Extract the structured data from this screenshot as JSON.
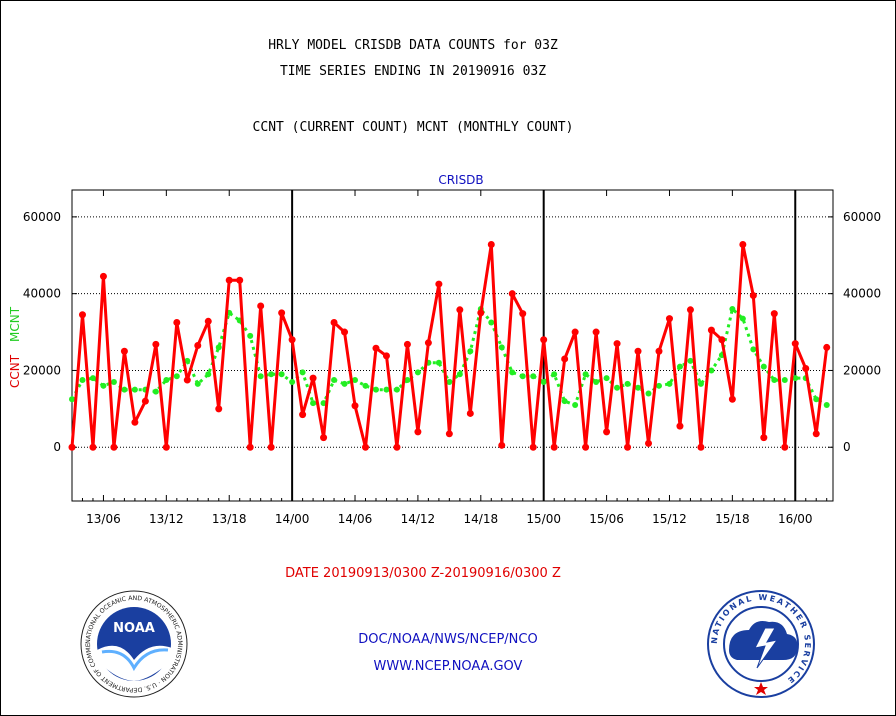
{
  "titles": {
    "line1": "HRLY MODEL CRISDB DATA COUNTS for 03Z",
    "line2": "TIME SERIES ENDING IN 20190916 03Z",
    "line3": "CCNT (CURRENT COUNT) MCNT (MONTHLY COUNT)",
    "panel_label": "CRISDB"
  },
  "footer": {
    "date_range": "DATE 20190913/0300 Z-20190916/0300 Z",
    "org": "DOC/NOAA/NWS/NCEP/NCO",
    "url": "WWW.NCEP.NOAA.GOV"
  },
  "logos": {
    "left_text": "NOAA",
    "left_ring_text": "NATIONAL OCEANIC AND ATMOSPHERIC ADMINISTRATION · U.S. DEPARTMENT OF COMMERCE",
    "right_ring_text": "NATIONAL WEATHER SERVICE"
  },
  "colors": {
    "ccnt": "#ff0000",
    "mcnt": "#22ee22",
    "axis": "#000000"
  },
  "chart_data": {
    "type": "line",
    "ylabel_ccnt": "CCNT",
    "ylabel_mcnt": "MCNT",
    "ylim": [
      -14000,
      67000
    ],
    "yticks": [
      0,
      20000,
      40000,
      60000
    ],
    "ytick_labels": [
      "0",
      "20000",
      "40000",
      "60000"
    ],
    "xlim": [
      0,
      72.6
    ],
    "xticks": [
      3,
      9,
      15,
      21,
      27,
      33,
      39,
      45,
      51,
      57,
      63,
      69
    ],
    "xtick_labels": [
      "13/06",
      "13/12",
      "13/18",
      "14/00",
      "14/06",
      "14/12",
      "14/18",
      "15/00",
      "15/06",
      "15/12",
      "15/18",
      "16/00"
    ],
    "day_boundaries": [
      21,
      45,
      69
    ],
    "grid": "horizontal dotted at labeled y ticks",
    "series": [
      {
        "name": "CCNT",
        "color": "#ff0000",
        "values": [
          0,
          34500,
          0,
          44500,
          0,
          25000,
          6500,
          12000,
          26800,
          0,
          32500,
          17500,
          26500,
          32800,
          10000,
          43500,
          43500,
          0,
          36800,
          0,
          35000,
          28000,
          8500,
          18000,
          2500,
          32500,
          30000,
          10800,
          0,
          25800,
          23800,
          0,
          26800,
          4000,
          27200,
          42500,
          3500,
          35800,
          8800,
          35000,
          52800,
          500,
          40000,
          34800,
          0,
          28000,
          0,
          23000,
          30000,
          0,
          30000,
          4000,
          27000,
          0,
          25000,
          1000,
          25000,
          33500,
          5500,
          35800,
          0,
          30500,
          28000,
          12500,
          52800,
          39500,
          2500,
          34800,
          0,
          27000,
          20500,
          3500,
          26000
        ]
      },
      {
        "name": "MCNT",
        "color": "#22ee22",
        "values": [
          12500,
          17500,
          18000,
          16000,
          17000,
          15000,
          15000,
          15000,
          14500,
          17500,
          18500,
          22500,
          16500,
          19000,
          26000,
          35000,
          33000,
          29000,
          18500,
          19000,
          19000,
          17000,
          19500,
          11500,
          11500,
          17500,
          16500,
          17500,
          16000,
          15000,
          15000,
          15000,
          17500,
          19500,
          22000,
          22000,
          17000,
          19000,
          25000,
          36000,
          32500,
          26000,
          19500,
          18500,
          18500,
          17000,
          19000,
          12000,
          11000,
          19000,
          17000,
          18000,
          15500,
          16500,
          15500,
          14000,
          16000,
          16500,
          21000,
          22500,
          16500,
          20000,
          24000,
          36000,
          33500,
          25500,
          21000,
          17500,
          17500,
          18000,
          18000,
          12500,
          11000
        ]
      }
    ]
  }
}
